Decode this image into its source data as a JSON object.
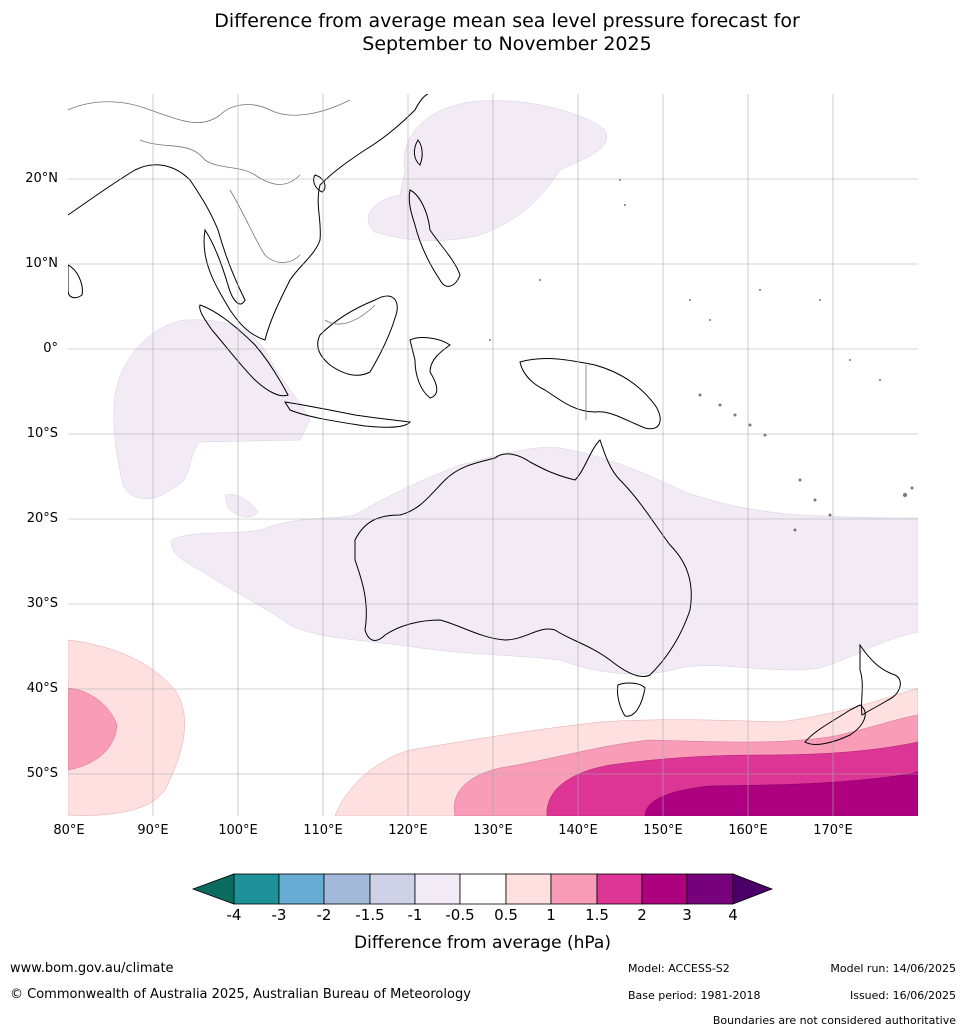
{
  "title_line1": "Difference from average mean sea level pressure forecast for",
  "title_line2": "September to November 2025",
  "lat_labels": [
    "20°N",
    "10°N",
    "0°",
    "10°S",
    "20°S",
    "30°S",
    "40°S",
    "50°S"
  ],
  "lon_labels": [
    "80°E",
    "90°E",
    "100°E",
    "110°E",
    "120°E",
    "130°E",
    "140°E",
    "150°E",
    "160°E",
    "170°E"
  ],
  "colorbar": {
    "ticks": [
      "-4",
      "-3",
      "-2",
      "-1.5",
      "-1",
      "-0.5",
      "0.5",
      "1",
      "1.5",
      "2",
      "3",
      "4"
    ],
    "colors": [
      "#0b6b5e",
      "#1e9298",
      "#67acd2",
      "#a3b9d9",
      "#cfd1e6",
      "#f2eaf4",
      "#ffffff",
      "#fde0df",
      "#f89cb8",
      "#dd3596",
      "#ae0180",
      "#77007c",
      "#4a0068"
    ],
    "label": "Difference from average (hPa)"
  },
  "footer": {
    "url": "www.bom.gov.au/climate",
    "copyright": "© Commonwealth of Australia 2025, Australian Bureau of Meteorology",
    "model": "Model: ACCESS-S2",
    "base_period": "Base period: 1981-2018",
    "model_run": "Model run: 14/06/2025",
    "issued": "Issued: 16/06/2025",
    "disclaimer": "Boundaries are not considered authoritative"
  }
}
